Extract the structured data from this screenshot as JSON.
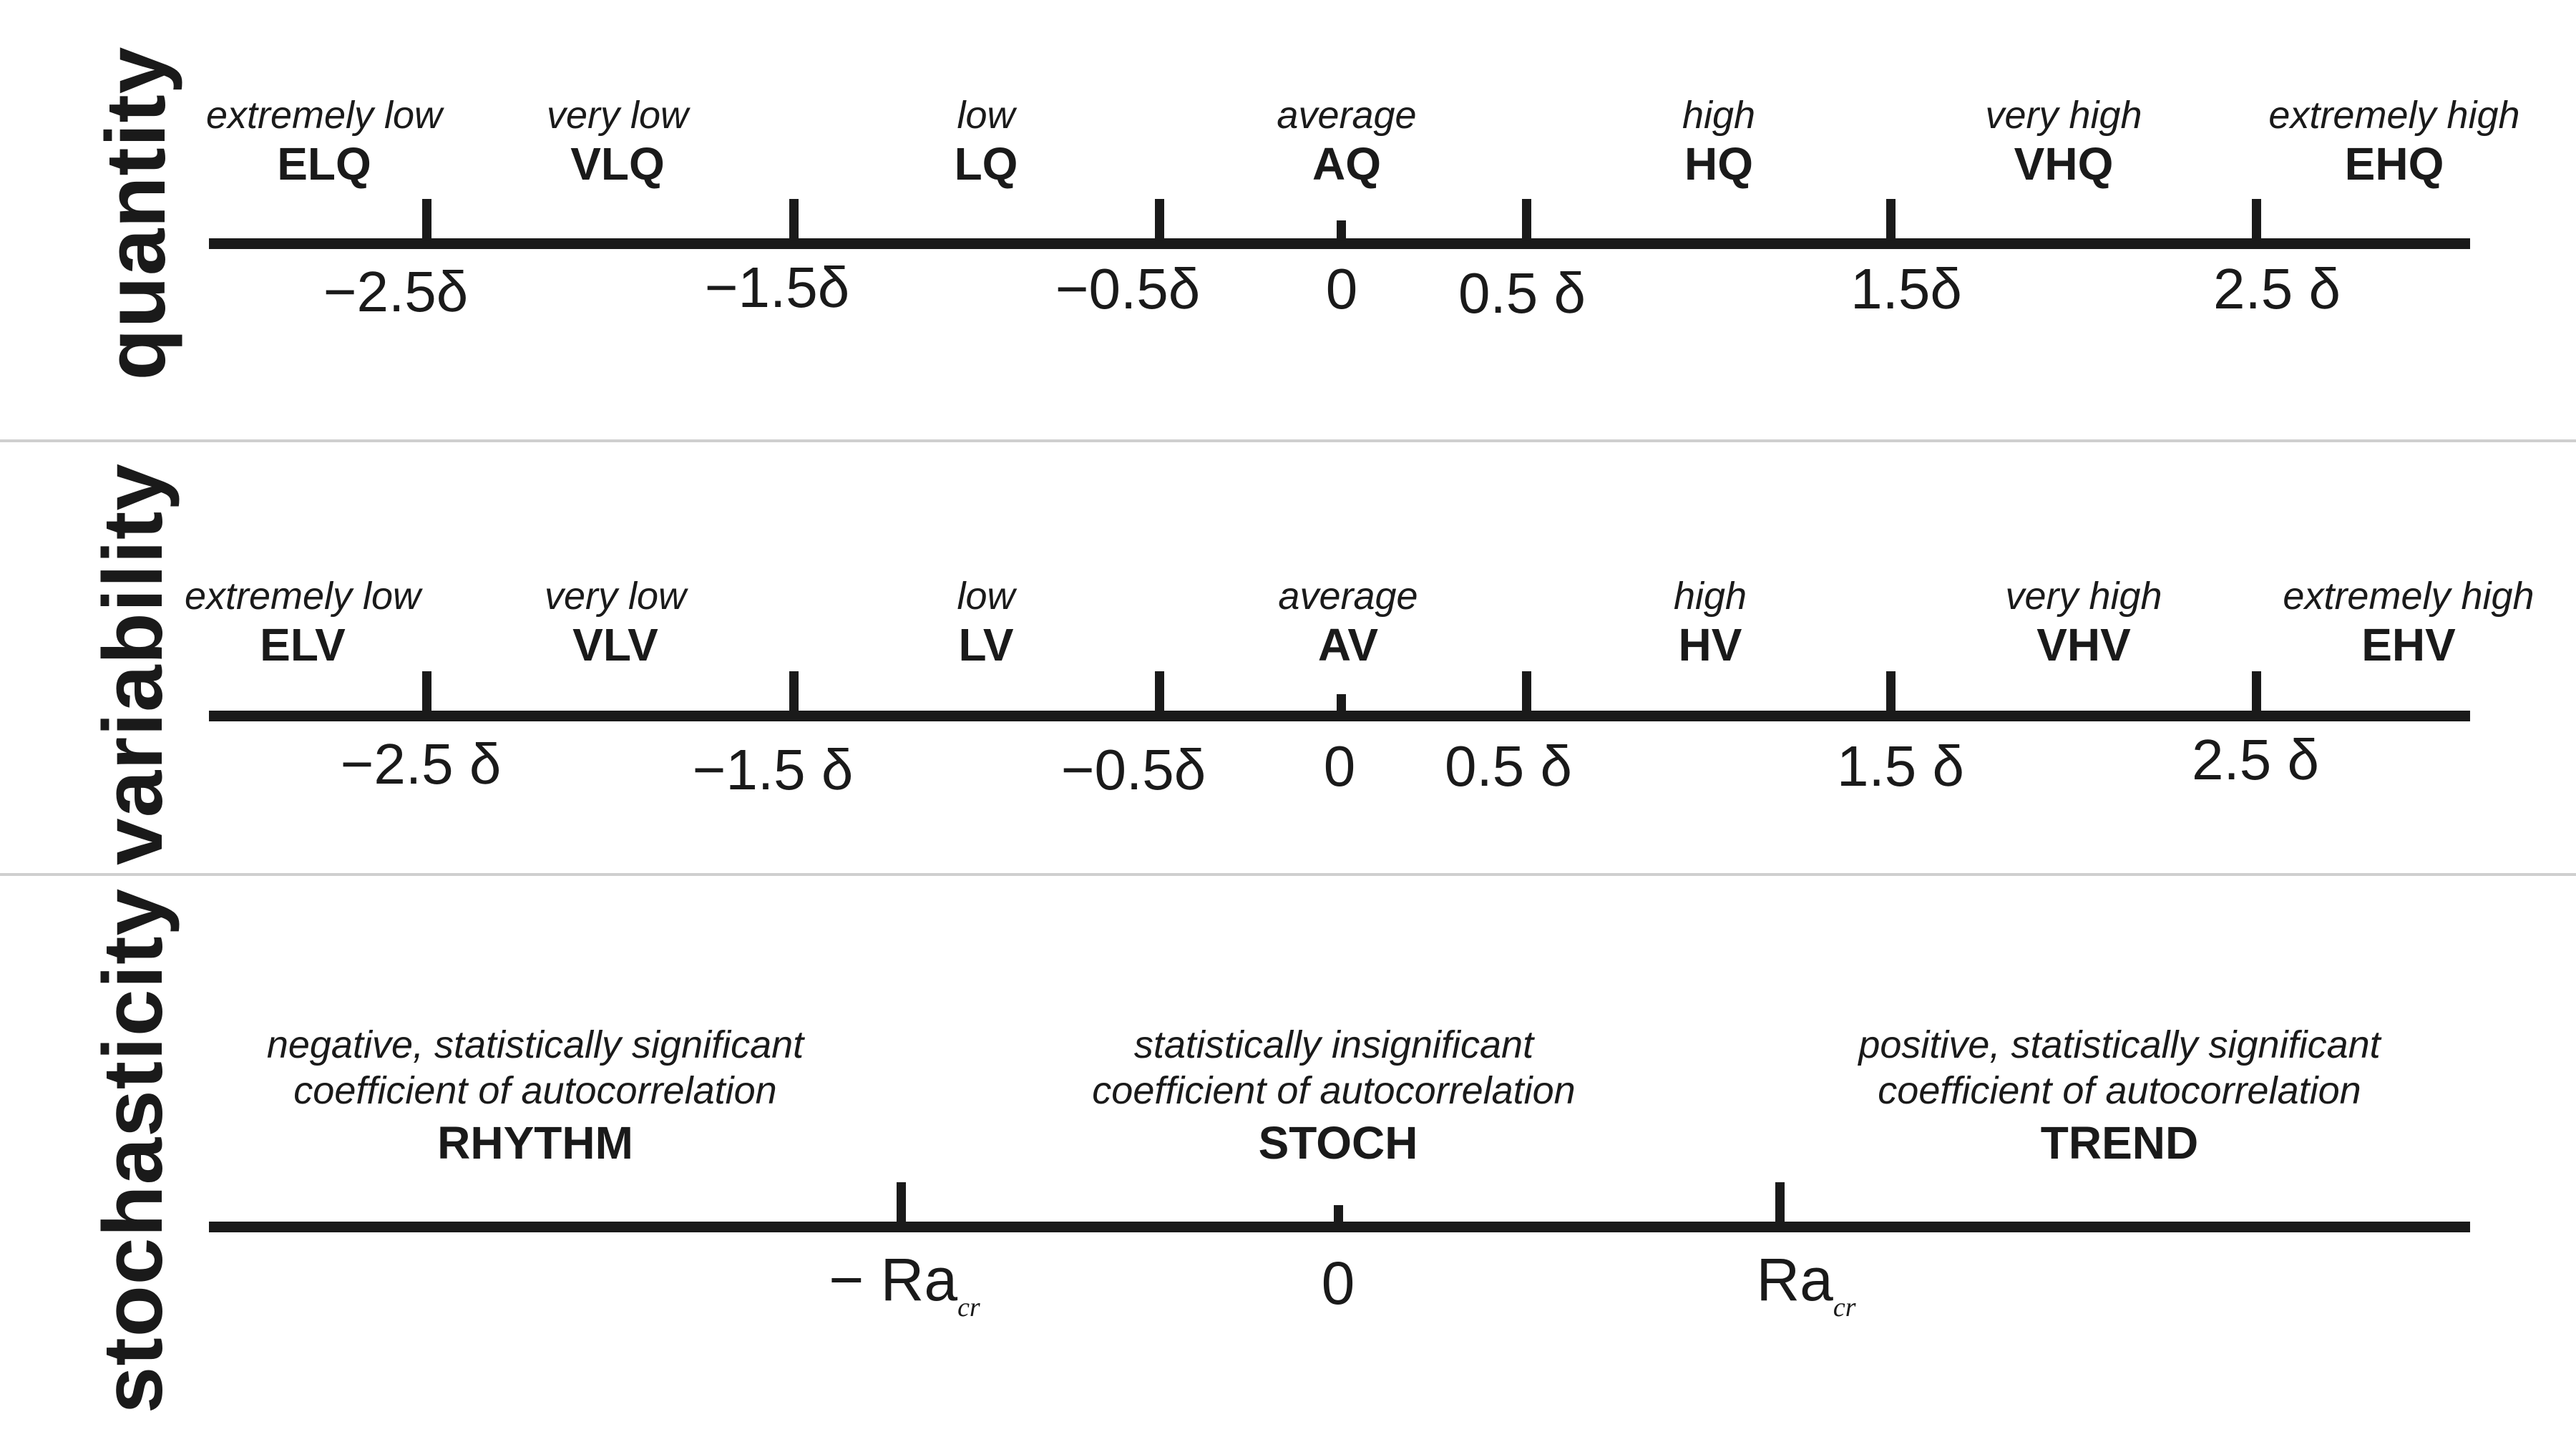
{
  "panels": {
    "quantity": {
      "label": "quantity",
      "classes": [
        {
          "desc": "extremely low",
          "abbr": "ELQ"
        },
        {
          "desc": "very low",
          "abbr": "VLQ"
        },
        {
          "desc": "low",
          "abbr": "LQ"
        },
        {
          "desc": "average",
          "abbr": "AQ"
        },
        {
          "desc": "high",
          "abbr": "HQ"
        },
        {
          "desc": "very high",
          "abbr": "VHQ"
        },
        {
          "desc": "extremely high",
          "abbr": "EHQ"
        }
      ],
      "ticks": [
        "−2.5δ",
        "−1.5δ",
        "−0.5δ",
        "0",
        "0.5 δ",
        "1.5δ",
        "2.5 δ"
      ]
    },
    "variability": {
      "label": "variability",
      "classes": [
        {
          "desc": "extremely low",
          "abbr": "ELV"
        },
        {
          "desc": "very low",
          "abbr": "VLV"
        },
        {
          "desc": "low",
          "abbr": "LV"
        },
        {
          "desc": "average",
          "abbr": "AV"
        },
        {
          "desc": "high",
          "abbr": "HV"
        },
        {
          "desc": "very high",
          "abbr": "VHV"
        },
        {
          "desc": "extremely high",
          "abbr": "EHV"
        }
      ],
      "ticks": [
        "−2.5 δ",
        "−1.5 δ",
        "−0.5δ",
        "0",
        "0.5 δ",
        "1.5 δ",
        "2.5 δ"
      ]
    },
    "stochasticity": {
      "label": "stochasticity",
      "classes": [
        {
          "line1": "negative, statistically significant",
          "line2": "coefficient of autocorrelation",
          "abbr": "RHYTHM"
        },
        {
          "line1": "statistically insignificant",
          "line2": "coefficient of autocorrelation",
          "abbr": "STOCH"
        },
        {
          "line1": "positive, statistically significant",
          "line2": "coefficient of autocorrelation",
          "abbr": "TREND"
        }
      ],
      "ticks": [
        {
          "main": "− Ra",
          "sub": "cr"
        },
        {
          "main": "0",
          "sub": ""
        },
        {
          "main": "Ra",
          "sub": "cr"
        }
      ]
    }
  }
}
